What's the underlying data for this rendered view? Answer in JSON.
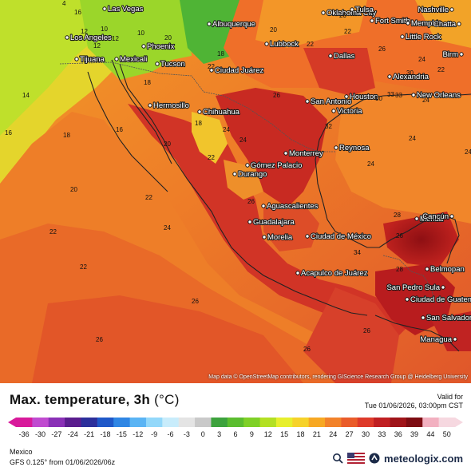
{
  "map": {
    "attribution": "Map data © OpenStreetMap contributors, rendering GIScience Research Group @ Heidelberg University",
    "cities": [
      {
        "name": "Las Vegas"
      },
      {
        "name": "Los Angeles"
      },
      {
        "name": "Tijuana"
      },
      {
        "name": "Mexicali"
      },
      {
        "name": "Phoenix"
      },
      {
        "name": "Tucson"
      },
      {
        "name": "Albuquerque"
      },
      {
        "name": "Ciudad Juárez"
      },
      {
        "name": "Lubbock"
      },
      {
        "name": "Oklahoma City"
      },
      {
        "name": "Tulsa"
      },
      {
        "name": "Fort Smith"
      },
      {
        "name": "Memphis"
      },
      {
        "name": "Nashville"
      },
      {
        "name": "Chatta"
      },
      {
        "name": "Little Rock"
      },
      {
        "name": "Birm"
      },
      {
        "name": "Dallas"
      },
      {
        "name": "Alexandria"
      },
      {
        "name": "San Antonio"
      },
      {
        "name": "Houston"
      },
      {
        "name": "New Orleans"
      },
      {
        "name": "Victoria"
      },
      {
        "name": "Hermosillo"
      },
      {
        "name": "Chihuahua"
      },
      {
        "name": "Monterrey"
      },
      {
        "name": "Reynosa"
      },
      {
        "name": "Gómez Palacio"
      },
      {
        "name": "Durango"
      },
      {
        "name": "Aguascalientes"
      },
      {
        "name": "Guadalajara"
      },
      {
        "name": "Morelia"
      },
      {
        "name": "Ciudad de México"
      },
      {
        "name": "Acapulco de Juárez"
      },
      {
        "name": "Mérida"
      },
      {
        "name": "Cancún"
      },
      {
        "name": "Belmopan"
      },
      {
        "name": "San Pedro Sula"
      },
      {
        "name": "Ciudad de Guatemala"
      },
      {
        "name": "San Salvador"
      },
      {
        "name": "Managua"
      }
    ],
    "isotherm_labels": [
      "4",
      "16",
      "12",
      "10",
      "10",
      "12",
      "12",
      "14",
      "16",
      "16",
      "18",
      "18",
      "20",
      "20",
      "20",
      "22",
      "22",
      "22",
      "22",
      "22",
      "24",
      "24",
      "24",
      "24",
      "24",
      "26",
      "26",
      "26",
      "26",
      "26",
      "26",
      "28",
      "28",
      "30",
      "30",
      "32",
      "33",
      "33",
      "34",
      "26",
      "24",
      "18",
      "20",
      "22",
      "20",
      "22",
      "24",
      "22",
      "24",
      "26",
      "18"
    ]
  },
  "legend": {
    "title": "Max. temperature, 3h",
    "unit": "(°C)",
    "valid_label": "Valid for",
    "valid_date": "Tue 01/06/2026, 03:00pm CST",
    "ticks": [
      "-36",
      "-30",
      "-27",
      "-24",
      "-21",
      "-18",
      "-15",
      "-12",
      "-9",
      "-6",
      "-3",
      "0",
      "3",
      "6",
      "9",
      "12",
      "15",
      "18",
      "21",
      "24",
      "27",
      "30",
      "33",
      "36",
      "39",
      "44",
      "50"
    ],
    "colors": [
      "#d81a9b",
      "#c04bd0",
      "#8a30b6",
      "#5a1d8e",
      "#2c2f9b",
      "#1f58c8",
      "#2f86e4",
      "#5ab4f4",
      "#93d8fa",
      "#c8ecfb",
      "#e4e4e4",
      "#c9c9c9",
      "#3da23d",
      "#5bbd2f",
      "#7fd027",
      "#b3e023",
      "#e7ef2d",
      "#f6d22a",
      "#f7a823",
      "#f2822a",
      "#ea5c2a",
      "#de3a2a",
      "#c01f22",
      "#9f1419",
      "#7d0c12",
      "#f2b0c0",
      "#f6d8e0"
    ],
    "region": "Mexico",
    "model_run": "GFS 0.125° from  01/06/2026/06z",
    "brand": "meteologix.com"
  }
}
